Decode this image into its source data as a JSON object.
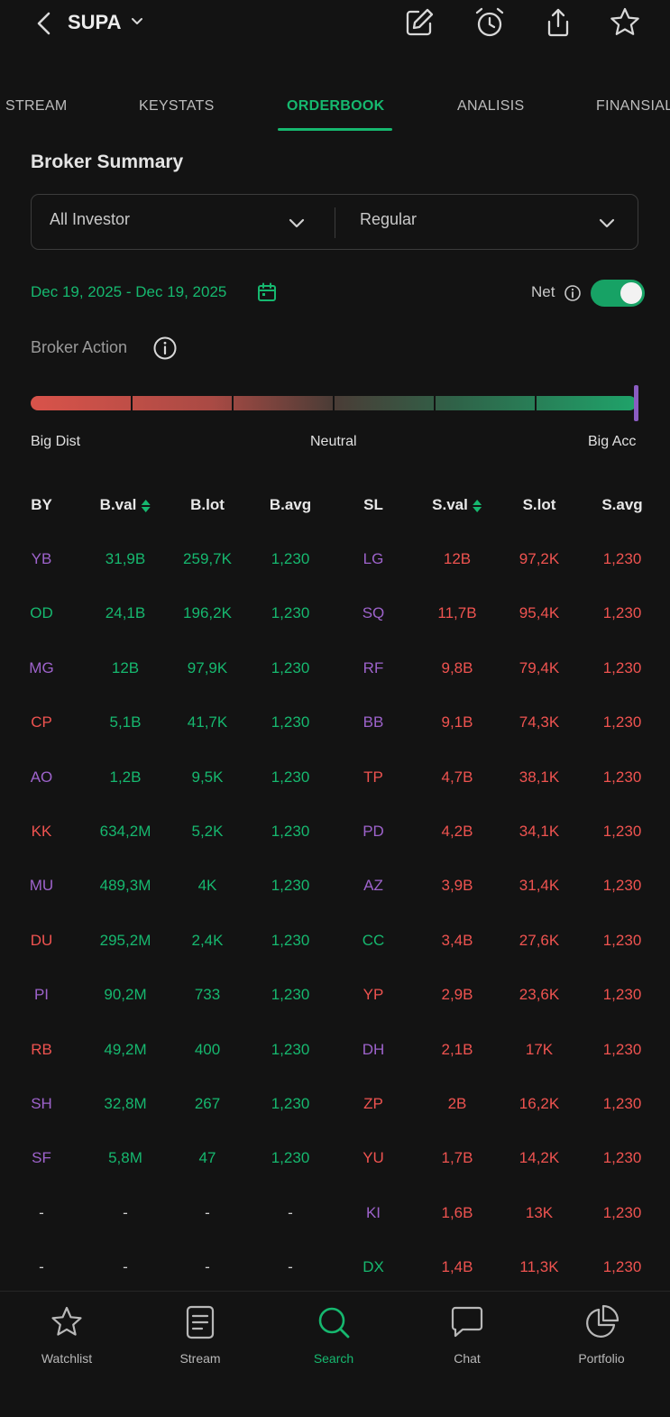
{
  "header": {
    "ticker": "SUPA"
  },
  "tabs": [
    {
      "label": "STREAM"
    },
    {
      "label": "KEYSTATS"
    },
    {
      "label": "ORDERBOOK"
    },
    {
      "label": "ANALISIS"
    },
    {
      "label": "FINANSIAL"
    }
  ],
  "broker_summary": {
    "title": "Broker Summary",
    "investor_filter": "All Investor",
    "market_filter": "Regular",
    "date_range": "Dec 19, 2025 - Dec 19, 2025",
    "net_label": "Net",
    "net_enabled": true,
    "broker_action_label": "Broker Action",
    "meter": {
      "left_label": "Big Dist",
      "center_label": "Neutral",
      "right_label": "Big Acc",
      "level": 1.0
    }
  },
  "table": {
    "headers": {
      "by": "BY",
      "bval": "B.val",
      "blot": "B.lot",
      "bavg": "B.avg",
      "sl": "SL",
      "sval": "S.val",
      "slot": "S.lot",
      "savg": "S.avg"
    },
    "rows": [
      {
        "by": "YB",
        "by_color": "purple",
        "bval": "31,9B",
        "blot": "259,7K",
        "bavg": "1,230",
        "sl": "LG",
        "sl_color": "purple",
        "sval": "12B",
        "slot": "97,2K",
        "savg": "1,230"
      },
      {
        "by": "OD",
        "by_color": "green",
        "bval": "24,1B",
        "blot": "196,2K",
        "bavg": "1,230",
        "sl": "SQ",
        "sl_color": "purple",
        "sval": "11,7B",
        "slot": "95,4K",
        "savg": "1,230"
      },
      {
        "by": "MG",
        "by_color": "purple",
        "bval": "12B",
        "blot": "97,9K",
        "bavg": "1,230",
        "sl": "RF",
        "sl_color": "purple",
        "sval": "9,8B",
        "slot": "79,4K",
        "savg": "1,230"
      },
      {
        "by": "CP",
        "by_color": "red",
        "bval": "5,1B",
        "blot": "41,7K",
        "bavg": "1,230",
        "sl": "BB",
        "sl_color": "purple",
        "sval": "9,1B",
        "slot": "74,3K",
        "savg": "1,230"
      },
      {
        "by": "AO",
        "by_color": "purple",
        "bval": "1,2B",
        "blot": "9,5K",
        "bavg": "1,230",
        "sl": "TP",
        "sl_color": "red",
        "sval": "4,7B",
        "slot": "38,1K",
        "savg": "1,230"
      },
      {
        "by": "KK",
        "by_color": "red",
        "bval": "634,2M",
        "blot": "5,2K",
        "bavg": "1,230",
        "sl": "PD",
        "sl_color": "purple",
        "sval": "4,2B",
        "slot": "34,1K",
        "savg": "1,230"
      },
      {
        "by": "MU",
        "by_color": "purple",
        "bval": "489,3M",
        "blot": "4K",
        "bavg": "1,230",
        "sl": "AZ",
        "sl_color": "purple",
        "sval": "3,9B",
        "slot": "31,4K",
        "savg": "1,230"
      },
      {
        "by": "DU",
        "by_color": "red",
        "bval": "295,2M",
        "blot": "2,4K",
        "bavg": "1,230",
        "sl": "CC",
        "sl_color": "green",
        "sval": "3,4B",
        "slot": "27,6K",
        "savg": "1,230"
      },
      {
        "by": "PI",
        "by_color": "purple",
        "bval": "90,2M",
        "blot": "733",
        "bavg": "1,230",
        "sl": "YP",
        "sl_color": "red",
        "sval": "2,9B",
        "slot": "23,6K",
        "savg": "1,230"
      },
      {
        "by": "RB",
        "by_color": "red",
        "bval": "49,2M",
        "blot": "400",
        "bavg": "1,230",
        "sl": "DH",
        "sl_color": "purple",
        "sval": "2,1B",
        "slot": "17K",
        "savg": "1,230"
      },
      {
        "by": "SH",
        "by_color": "purple",
        "bval": "32,8M",
        "blot": "267",
        "bavg": "1,230",
        "sl": "ZP",
        "sl_color": "red",
        "sval": "2B",
        "slot": "16,2K",
        "savg": "1,230"
      },
      {
        "by": "SF",
        "by_color": "purple",
        "bval": "5,8M",
        "blot": "47",
        "bavg": "1,230",
        "sl": "YU",
        "sl_color": "red",
        "sval": "1,7B",
        "slot": "14,2K",
        "savg": "1,230"
      },
      {
        "by": "-",
        "by_color": "gray",
        "bval": "-",
        "blot": "-",
        "bavg": "-",
        "sl": "KI",
        "sl_color": "purple",
        "sval": "1,6B",
        "slot": "13K",
        "savg": "1,230"
      },
      {
        "by": "-",
        "by_color": "gray",
        "bval": "-",
        "blot": "-",
        "bavg": "-",
        "sl": "DX",
        "sl_color": "green",
        "sval": "1,4B",
        "slot": "11,3K",
        "savg": "1,230"
      }
    ]
  },
  "bottom_nav": [
    {
      "label": "Watchlist",
      "icon": "star-icon"
    },
    {
      "label": "Stream",
      "icon": "stream-icon"
    },
    {
      "label": "Search",
      "icon": "search-icon",
      "active": true
    },
    {
      "label": "Chat",
      "icon": "chat-icon"
    },
    {
      "label": "Portfolio",
      "icon": "pie-chart-icon"
    }
  ],
  "colors": {
    "accent": "#16b86f",
    "sell": "#ef5350",
    "broker_purple": "#9e63cc",
    "background": "#131313"
  }
}
